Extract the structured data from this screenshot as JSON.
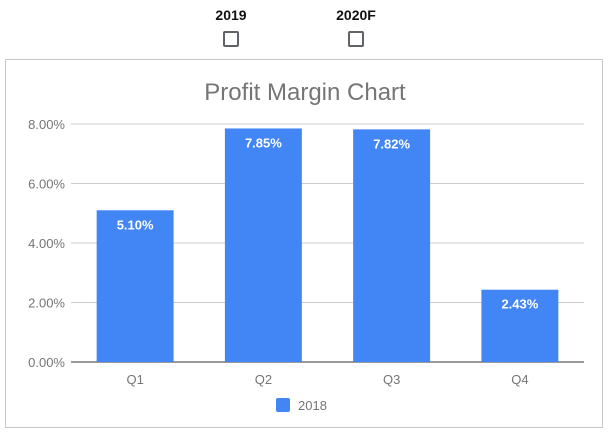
{
  "toggles": [
    {
      "label": "2019",
      "checked": false
    },
    {
      "label": "2020F",
      "checked": false
    }
  ],
  "chart_data": {
    "type": "bar",
    "title": "Profit Margin Chart",
    "categories": [
      "Q1",
      "Q2",
      "Q3",
      "Q4"
    ],
    "series": [
      {
        "name": "2018",
        "values": [
          5.1,
          7.85,
          7.82,
          2.43
        ],
        "labels": [
          "5.10%",
          "7.85%",
          "7.82%",
          "2.43%"
        ],
        "color": "#4285f4"
      }
    ],
    "ylim": [
      0,
      8
    ],
    "yticks": [
      0,
      2,
      4,
      6,
      8
    ],
    "ytick_labels": [
      "0.00%",
      "2.00%",
      "4.00%",
      "6.00%",
      "8.00%"
    ],
    "grid": true,
    "legend_position": "bottom",
    "colors": {
      "title": "#757575",
      "tick": "#757575",
      "grid": "#cccccc",
      "baseline": "#333333",
      "data_label": "#ffffff"
    }
  }
}
